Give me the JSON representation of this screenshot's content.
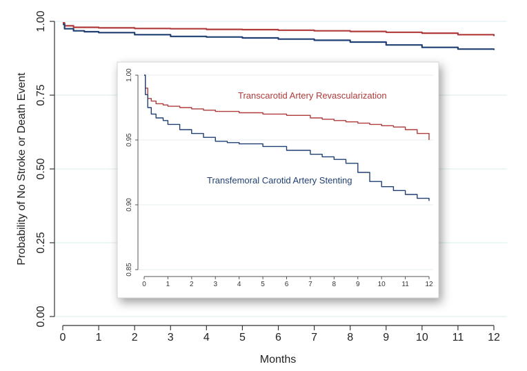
{
  "chart_data": [
    {
      "type": "line",
      "title": "",
      "xlabel": "Months",
      "ylabel": "Probability of No Stroke or Death Event",
      "xlim": [
        0,
        12
      ],
      "ylim": [
        0,
        1
      ],
      "xticks": [
        "0",
        "1",
        "2",
        "3",
        "4",
        "5",
        "6",
        "7",
        "8",
        "9",
        "10",
        "11",
        "12"
      ],
      "yticks": [
        "0.00",
        "0.25",
        "0.50",
        "0.75",
        "1.00"
      ],
      "grid": true,
      "series": [
        {
          "color": "#b03a3a",
          "x": [
            0,
            0.05,
            0.3,
            1,
            2,
            3,
            4,
            5,
            6,
            7,
            8,
            9,
            10,
            11,
            12
          ],
          "y": [
            0.995,
            0.985,
            0.98,
            0.978,
            0.976,
            0.975,
            0.973,
            0.972,
            0.97,
            0.968,
            0.966,
            0.963,
            0.96,
            0.955,
            0.95
          ]
        },
        {
          "color": "#1f3f73",
          "x": [
            0,
            0.05,
            0.3,
            0.6,
            1,
            2,
            3,
            4,
            5,
            6,
            7,
            8,
            9,
            10,
            11,
            12
          ],
          "y": [
            0.99,
            0.975,
            0.968,
            0.965,
            0.962,
            0.955,
            0.949,
            0.947,
            0.944,
            0.94,
            0.936,
            0.93,
            0.92,
            0.912,
            0.906,
            0.903
          ]
        }
      ]
    },
    {
      "type": "line",
      "title": "",
      "xlabel": "",
      "ylabel": "",
      "xlim": [
        0,
        12
      ],
      "ylim": [
        0.85,
        1.0
      ],
      "xticks": [
        "0",
        "1",
        "2",
        "3",
        "4",
        "5",
        "6",
        "7",
        "8",
        "9",
        "10",
        "11",
        "12"
      ],
      "yticks": [
        "0.85",
        "0.90",
        "0.95",
        "1.00"
      ],
      "grid": true,
      "series": [
        {
          "name": "Transcarotid Artery Revascularization",
          "color": "#b03a3a",
          "x": [
            0,
            0.05,
            0.15,
            0.3,
            0.5,
            0.8,
            1,
            1.5,
            2,
            2.5,
            3,
            4,
            5,
            6,
            7,
            7.5,
            8,
            8.5,
            9,
            9.5,
            10,
            10.5,
            11,
            11.5,
            12
          ],
          "y": [
            1.0,
            0.99,
            0.982,
            0.98,
            0.978,
            0.977,
            0.976,
            0.975,
            0.974,
            0.973,
            0.972,
            0.971,
            0.97,
            0.969,
            0.967,
            0.966,
            0.965,
            0.964,
            0.963,
            0.962,
            0.961,
            0.96,
            0.958,
            0.955,
            0.95
          ]
        },
        {
          "name": "Transfemoral Carotid Artery Stenting",
          "color": "#1f3f73",
          "x": [
            0,
            0.05,
            0.15,
            0.3,
            0.5,
            0.8,
            1,
            1.5,
            2,
            2.5,
            3,
            3.5,
            4,
            5,
            6,
            7,
            7.5,
            8,
            8.5,
            9,
            9.5,
            10,
            10.5,
            11,
            11.5,
            12
          ],
          "y": [
            1.0,
            0.985,
            0.975,
            0.97,
            0.967,
            0.965,
            0.962,
            0.958,
            0.955,
            0.952,
            0.949,
            0.948,
            0.947,
            0.945,
            0.942,
            0.939,
            0.937,
            0.935,
            0.932,
            0.925,
            0.918,
            0.914,
            0.911,
            0.908,
            0.905,
            0.903
          ]
        }
      ]
    }
  ]
}
